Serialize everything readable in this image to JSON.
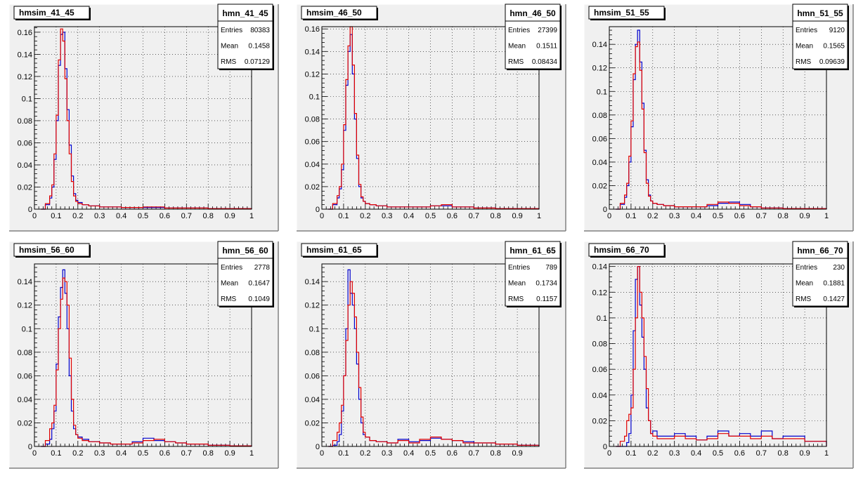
{
  "colors": {
    "background": "#f0f0f0",
    "frame_dark": "#808080",
    "frame_light": "#ffffff",
    "grid": "#000000",
    "series_blue": "#0000cc",
    "series_red": "#e00000"
  },
  "chart_data": [
    {
      "type": "histogram",
      "title": "hmsim_41_45",
      "stats": {
        "name": "hmn_41_45",
        "rows": [
          {
            "label": "Entries",
            "value": "80383"
          },
          {
            "label": "Mean",
            "value": "0.1458"
          },
          {
            "label": "RMS",
            "value": "0.07129"
          }
        ]
      },
      "xlim": [
        0,
        1
      ],
      "ylim": [
        0,
        0.165
      ],
      "xticks": [
        "0",
        "0.1",
        "0.2",
        "0.3",
        "0.4",
        "0.5",
        "0.6",
        "0.7",
        "0.8",
        "0.9",
        "1"
      ],
      "yticks": [
        "0",
        "0.02",
        "0.04",
        "0.06",
        "0.08",
        "0.1",
        "0.12",
        "0.14",
        "0.16"
      ],
      "grid": true,
      "series": [
        {
          "color": "blue",
          "x": [
            0.03,
            0.05,
            0.07,
            0.08,
            0.09,
            0.1,
            0.11,
            0.12,
            0.13,
            0.14,
            0.15,
            0.16,
            0.17,
            0.18,
            0.19,
            0.2,
            0.22,
            0.25,
            0.3,
            0.35,
            0.4,
            0.5,
            0.6,
            0.7,
            0.8,
            0.9,
            1.0
          ],
          "y": [
            0.0,
            0.004,
            0.01,
            0.02,
            0.045,
            0.08,
            0.13,
            0.158,
            0.16,
            0.127,
            0.09,
            0.058,
            0.03,
            0.014,
            0.008,
            0.006,
            0.004,
            0.003,
            0.002,
            0.002,
            0.0015,
            0.0015,
            0.001,
            0.001,
            0.0005,
            0.0005,
            0.0
          ]
        },
        {
          "color": "red",
          "x": [
            0.03,
            0.05,
            0.07,
            0.08,
            0.09,
            0.1,
            0.11,
            0.12,
            0.13,
            0.14,
            0.15,
            0.16,
            0.17,
            0.18,
            0.19,
            0.2,
            0.22,
            0.25,
            0.3,
            0.35,
            0.4,
            0.5,
            0.6,
            0.7,
            0.8,
            0.9,
            1.0
          ],
          "y": [
            0.0,
            0.005,
            0.012,
            0.022,
            0.05,
            0.085,
            0.135,
            0.163,
            0.152,
            0.118,
            0.08,
            0.05,
            0.025,
            0.012,
            0.007,
            0.005,
            0.004,
            0.003,
            0.002,
            0.002,
            0.0015,
            0.002,
            0.001,
            0.001,
            0.0005,
            0.0005,
            0.0
          ]
        }
      ]
    },
    {
      "type": "histogram",
      "title": "hmsim_46_50",
      "stats": {
        "name": "hmn_46_50",
        "rows": [
          {
            "label": "Entries",
            "value": "27399"
          },
          {
            "label": "Mean",
            "value": "0.1511"
          },
          {
            "label": "RMS",
            "value": "0.08434"
          }
        ]
      },
      "xlim": [
        0,
        1
      ],
      "ylim": [
        0,
        0.162
      ],
      "xticks": [
        "0",
        "0.1",
        "0.2",
        "0.3",
        "0.4",
        "0.5",
        "0.6",
        "0.7",
        "0.8",
        "0.9",
        "1"
      ],
      "yticks": [
        "0",
        "0.02",
        "0.04",
        "0.06",
        "0.08",
        "0.1",
        "0.12",
        "0.14",
        "0.16"
      ],
      "grid": true,
      "series": [
        {
          "color": "blue",
          "x": [
            0.03,
            0.05,
            0.07,
            0.08,
            0.09,
            0.1,
            0.11,
            0.12,
            0.13,
            0.14,
            0.15,
            0.16,
            0.17,
            0.18,
            0.19,
            0.2,
            0.22,
            0.25,
            0.3,
            0.35,
            0.4,
            0.45,
            0.5,
            0.55,
            0.6,
            0.7,
            0.8,
            1.0
          ],
          "y": [
            0.0,
            0.004,
            0.01,
            0.018,
            0.035,
            0.07,
            0.11,
            0.14,
            0.155,
            0.12,
            0.08,
            0.045,
            0.02,
            0.01,
            0.007,
            0.005,
            0.004,
            0.003,
            0.002,
            0.002,
            0.002,
            0.002,
            0.003,
            0.003,
            0.002,
            0.001,
            0.0005,
            0.0
          ]
        },
        {
          "color": "red",
          "x": [
            0.03,
            0.05,
            0.07,
            0.08,
            0.09,
            0.1,
            0.11,
            0.12,
            0.13,
            0.14,
            0.15,
            0.16,
            0.17,
            0.18,
            0.19,
            0.2,
            0.22,
            0.25,
            0.3,
            0.35,
            0.4,
            0.45,
            0.5,
            0.55,
            0.6,
            0.7,
            0.8,
            1.0
          ],
          "y": [
            0.0,
            0.005,
            0.012,
            0.02,
            0.04,
            0.075,
            0.115,
            0.145,
            0.162,
            0.128,
            0.085,
            0.048,
            0.022,
            0.011,
            0.007,
            0.005,
            0.004,
            0.003,
            0.002,
            0.002,
            0.002,
            0.002,
            0.003,
            0.004,
            0.002,
            0.001,
            0.0005,
            0.0
          ]
        }
      ]
    },
    {
      "type": "histogram",
      "title": "hmsim_51_55",
      "stats": {
        "name": "hmn_51_55",
        "rows": [
          {
            "label": "Entries",
            "value": "9120"
          },
          {
            "label": "Mean",
            "value": "0.1565"
          },
          {
            "label": "RMS",
            "value": "0.09639"
          }
        ]
      },
      "xlim": [
        0,
        1
      ],
      "ylim": [
        0,
        0.155
      ],
      "xticks": [
        "0",
        "0.1",
        "0.2",
        "0.3",
        "0.4",
        "0.5",
        "0.6",
        "0.7",
        "0.8",
        "0.9",
        "1"
      ],
      "yticks": [
        "0",
        "0.02",
        "0.04",
        "0.06",
        "0.08",
        "0.1",
        "0.12",
        "0.14"
      ],
      "grid": true,
      "series": [
        {
          "color": "blue",
          "x": [
            0.03,
            0.05,
            0.07,
            0.08,
            0.09,
            0.1,
            0.11,
            0.12,
            0.13,
            0.14,
            0.15,
            0.16,
            0.17,
            0.18,
            0.19,
            0.2,
            0.22,
            0.25,
            0.3,
            0.35,
            0.4,
            0.45,
            0.5,
            0.55,
            0.6,
            0.65,
            0.7,
            0.8,
            1.0
          ],
          "y": [
            0.0,
            0.004,
            0.01,
            0.02,
            0.04,
            0.07,
            0.11,
            0.14,
            0.152,
            0.125,
            0.09,
            0.05,
            0.025,
            0.012,
            0.007,
            0.005,
            0.004,
            0.003,
            0.002,
            0.002,
            0.002,
            0.003,
            0.005,
            0.006,
            0.004,
            0.002,
            0.001,
            0.0005,
            0.0
          ]
        },
        {
          "color": "red",
          "x": [
            0.03,
            0.05,
            0.07,
            0.08,
            0.09,
            0.1,
            0.11,
            0.12,
            0.13,
            0.14,
            0.15,
            0.16,
            0.17,
            0.18,
            0.19,
            0.2,
            0.22,
            0.25,
            0.3,
            0.35,
            0.4,
            0.45,
            0.5,
            0.55,
            0.6,
            0.65,
            0.7,
            0.8,
            1.0
          ],
          "y": [
            0.0,
            0.005,
            0.012,
            0.022,
            0.045,
            0.075,
            0.115,
            0.138,
            0.142,
            0.118,
            0.085,
            0.048,
            0.022,
            0.011,
            0.007,
            0.005,
            0.004,
            0.003,
            0.002,
            0.002,
            0.002,
            0.004,
            0.006,
            0.005,
            0.003,
            0.002,
            0.001,
            0.0005,
            0.0
          ]
        }
      ]
    },
    {
      "type": "histogram",
      "title": "hmsim_56_60",
      "stats": {
        "name": "hmn_56_60",
        "rows": [
          {
            "label": "Entries",
            "value": "2778"
          },
          {
            "label": "Mean",
            "value": "0.1647"
          },
          {
            "label": "RMS",
            "value": "0.1049"
          }
        ]
      },
      "xlim": [
        0,
        1
      ],
      "ylim": [
        0,
        0.155
      ],
      "xticks": [
        "0",
        "0.1",
        "0.2",
        "0.3",
        "0.4",
        "0.5",
        "0.6",
        "0.7",
        "0.8",
        "0.9",
        "1"
      ],
      "yticks": [
        "0",
        "0.02",
        "0.04",
        "0.06",
        "0.08",
        "0.1",
        "0.12",
        "0.14"
      ],
      "grid": true,
      "series": [
        {
          "color": "blue",
          "x": [
            0.03,
            0.05,
            0.07,
            0.08,
            0.09,
            0.1,
            0.11,
            0.12,
            0.13,
            0.14,
            0.15,
            0.16,
            0.17,
            0.18,
            0.19,
            0.2,
            0.22,
            0.25,
            0.3,
            0.35,
            0.4,
            0.45,
            0.5,
            0.55,
            0.6,
            0.65,
            0.7,
            0.8,
            0.9,
            1.0
          ],
          "y": [
            0.0,
            0.002,
            0.006,
            0.015,
            0.03,
            0.07,
            0.11,
            0.135,
            0.15,
            0.13,
            0.1,
            0.06,
            0.03,
            0.015,
            0.01,
            0.008,
            0.006,
            0.004,
            0.003,
            0.002,
            0.002,
            0.004,
            0.007,
            0.005,
            0.004,
            0.003,
            0.002,
            0.001,
            0.0005,
            0.0
          ]
        },
        {
          "color": "red",
          "x": [
            0.03,
            0.05,
            0.07,
            0.08,
            0.09,
            0.1,
            0.11,
            0.12,
            0.13,
            0.14,
            0.15,
            0.16,
            0.17,
            0.18,
            0.19,
            0.2,
            0.22,
            0.25,
            0.3,
            0.35,
            0.4,
            0.45,
            0.5,
            0.55,
            0.6,
            0.65,
            0.7,
            0.8,
            0.9,
            1.0
          ],
          "y": [
            0.0,
            0.005,
            0.015,
            0.02,
            0.035,
            0.065,
            0.1,
            0.125,
            0.143,
            0.14,
            0.12,
            0.075,
            0.04,
            0.018,
            0.01,
            0.007,
            0.005,
            0.004,
            0.003,
            0.002,
            0.002,
            0.003,
            0.005,
            0.006,
            0.004,
            0.003,
            0.002,
            0.001,
            0.0005,
            0.0
          ]
        }
      ]
    },
    {
      "type": "histogram",
      "title": "hmsim_61_65",
      "stats": {
        "name": "hmn_61_65",
        "rows": [
          {
            "label": "Entries",
            "value": "789"
          },
          {
            "label": "Mean",
            "value": "0.1734"
          },
          {
            "label": "RMS",
            "value": "0.1157"
          }
        ]
      },
      "xlim": [
        0,
        1
      ],
      "ylim": [
        0,
        0.155
      ],
      "xticks": [
        "0",
        "0.1",
        "0.2",
        "0.3",
        "0.4",
        "0.5",
        "0.6",
        "0.7",
        "0.8",
        "0.9"
      ],
      "yticks": [
        "0",
        "0.02",
        "0.04",
        "0.06",
        "0.08",
        "0.1",
        "0.12",
        "0.14"
      ],
      "grid": true,
      "series": [
        {
          "color": "blue",
          "x": [
            0.03,
            0.05,
            0.07,
            0.08,
            0.09,
            0.1,
            0.11,
            0.12,
            0.13,
            0.14,
            0.15,
            0.16,
            0.17,
            0.18,
            0.19,
            0.2,
            0.22,
            0.25,
            0.3,
            0.35,
            0.4,
            0.45,
            0.5,
            0.55,
            0.6,
            0.65,
            0.7,
            0.8,
            0.9,
            1.0
          ],
          "y": [
            0.0,
            0.001,
            0.004,
            0.01,
            0.03,
            0.06,
            0.1,
            0.15,
            0.13,
            0.12,
            0.1,
            0.07,
            0.04,
            0.02,
            0.01,
            0.008,
            0.005,
            0.004,
            0.003,
            0.006,
            0.004,
            0.005,
            0.007,
            0.006,
            0.005,
            0.004,
            0.003,
            0.002,
            0.001,
            0.0
          ]
        },
        {
          "color": "red",
          "x": [
            0.03,
            0.05,
            0.07,
            0.08,
            0.09,
            0.1,
            0.11,
            0.12,
            0.13,
            0.14,
            0.15,
            0.16,
            0.17,
            0.18,
            0.19,
            0.2,
            0.22,
            0.25,
            0.3,
            0.35,
            0.4,
            0.45,
            0.5,
            0.55,
            0.6,
            0.65,
            0.7,
            0.8,
            0.9,
            1.0
          ],
          "y": [
            0.0,
            0.005,
            0.012,
            0.02,
            0.035,
            0.06,
            0.09,
            0.12,
            0.14,
            0.13,
            0.11,
            0.08,
            0.05,
            0.025,
            0.012,
            0.008,
            0.005,
            0.004,
            0.003,
            0.005,
            0.003,
            0.006,
            0.008,
            0.006,
            0.005,
            0.003,
            0.003,
            0.002,
            0.001,
            0.0
          ]
        }
      ]
    },
    {
      "type": "histogram",
      "title": "hmsim_66_70",
      "stats": {
        "name": "hmn_66_70",
        "rows": [
          {
            "label": "Entries",
            "value": "230"
          },
          {
            "label": "Mean",
            "value": "0.1881"
          },
          {
            "label": "RMS",
            "value": "0.1427"
          }
        ]
      },
      "xlim": [
        0,
        1
      ],
      "ylim": [
        0,
        0.142
      ],
      "xticks": [
        "0",
        "0.1",
        "0.2",
        "0.3",
        "0.4",
        "0.5",
        "0.6",
        "0.7",
        "0.8",
        "0.9",
        "1"
      ],
      "yticks": [
        "0",
        "0.02",
        "0.04",
        "0.06",
        "0.08",
        "0.1",
        "0.12",
        "0.14"
      ],
      "grid": true,
      "series": [
        {
          "color": "blue",
          "x": [
            0.03,
            0.05,
            0.07,
            0.08,
            0.09,
            0.1,
            0.11,
            0.12,
            0.13,
            0.14,
            0.15,
            0.16,
            0.17,
            0.18,
            0.19,
            0.2,
            0.22,
            0.25,
            0.3,
            0.35,
            0.4,
            0.45,
            0.5,
            0.55,
            0.6,
            0.65,
            0.7,
            0.75,
            0.8,
            0.9,
            1.0
          ],
          "y": [
            0.0,
            0.0,
            0.0,
            0.003,
            0.01,
            0.04,
            0.09,
            0.13,
            0.14,
            0.11,
            0.085,
            0.06,
            0.03,
            0.02,
            0.01,
            0.012,
            0.008,
            0.008,
            0.01,
            0.008,
            0.005,
            0.008,
            0.012,
            0.008,
            0.01,
            0.008,
            0.012,
            0.006,
            0.008,
            0.004,
            0.0
          ]
        },
        {
          "color": "red",
          "x": [
            0.03,
            0.05,
            0.07,
            0.08,
            0.09,
            0.1,
            0.11,
            0.12,
            0.13,
            0.14,
            0.15,
            0.16,
            0.17,
            0.18,
            0.19,
            0.2,
            0.22,
            0.25,
            0.3,
            0.35,
            0.4,
            0.45,
            0.5,
            0.55,
            0.6,
            0.65,
            0.7,
            0.75,
            0.8,
            0.9,
            1.0
          ],
          "y": [
            0.0,
            0.004,
            0.008,
            0.02,
            0.025,
            0.03,
            0.06,
            0.1,
            0.14,
            0.12,
            0.1,
            0.07,
            0.045,
            0.02,
            0.01,
            0.008,
            0.006,
            0.006,
            0.008,
            0.006,
            0.005,
            0.006,
            0.01,
            0.008,
            0.008,
            0.006,
            0.008,
            0.006,
            0.006,
            0.004,
            0.0
          ]
        }
      ]
    }
  ]
}
